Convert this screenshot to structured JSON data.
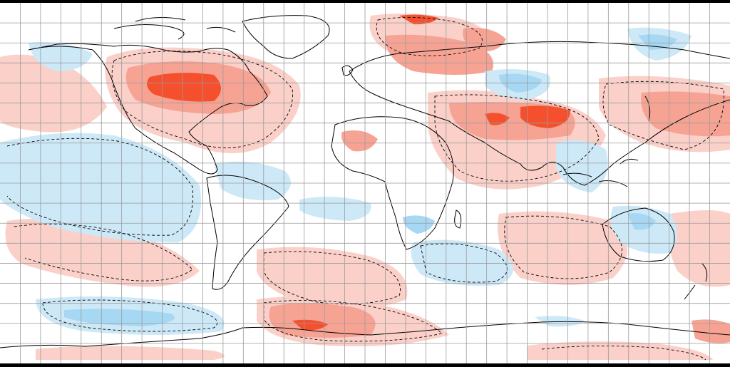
{
  "map": {
    "projection": "equirectangular",
    "longitude_range": [
      -180,
      180
    ],
    "latitude_range": [
      -90,
      90
    ],
    "grid_spacing_degrees": 10,
    "grid_visible": true,
    "anomaly_classes": [
      {
        "name": "strong-warm",
        "color": "#f5502e"
      },
      {
        "name": "warm",
        "color": "#f7a394"
      },
      {
        "name": "weak-warm",
        "color": "#fbd0c9"
      },
      {
        "name": "weak-cool",
        "color": "#cde9f8"
      },
      {
        "name": "cool",
        "color": "#a6d8f3"
      },
      {
        "name": "strong-cool",
        "color": "#75c0ee"
      }
    ],
    "background_color": "#ffffff",
    "frame_color": "#000000",
    "grid_color": "#9a9a9a",
    "coast_color": "#000000",
    "contour_style": "dashed"
  }
}
